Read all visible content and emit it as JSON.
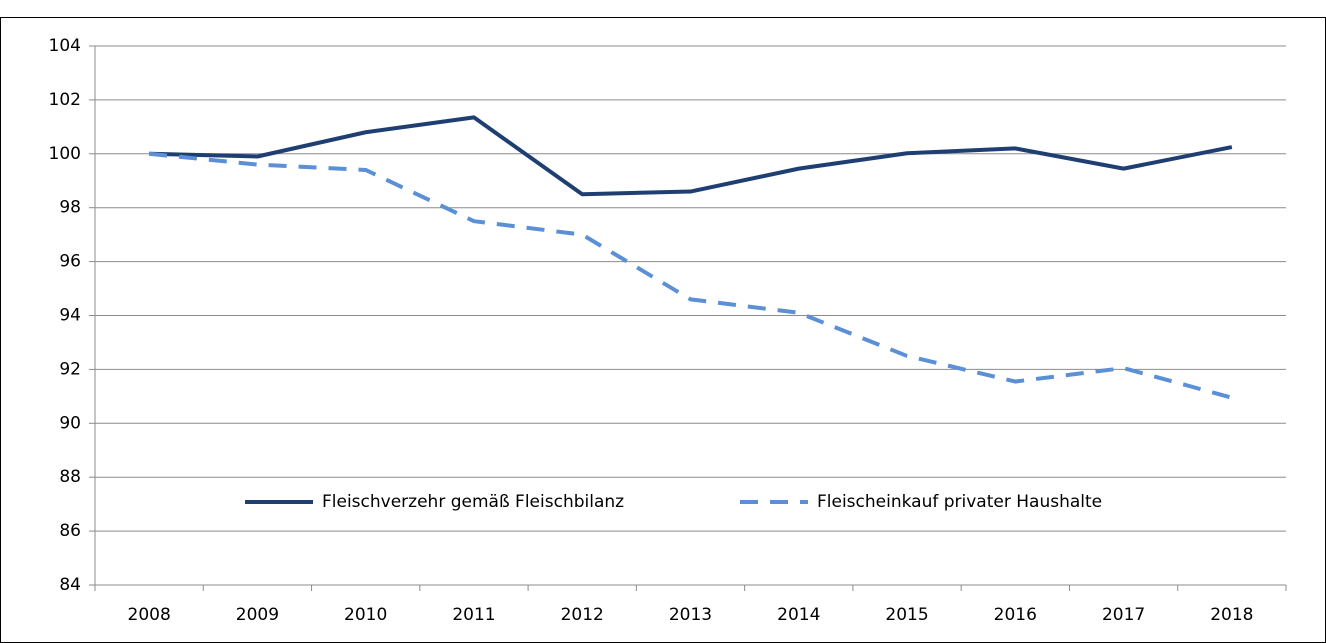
{
  "chart_data": {
    "type": "line",
    "categories": [
      "2008",
      "2009",
      "2010",
      "2011",
      "2012",
      "2013",
      "2014",
      "2015",
      "2016",
      "2017",
      "2018"
    ],
    "series": [
      {
        "name": "Fleischverzehr gemäß Fleischbilanz",
        "color": "#1f3f73",
        "dash": false,
        "values": [
          100,
          99.9,
          100.8,
          101.35,
          98.5,
          98.6,
          99.45,
          100.02,
          100.2,
          99.45,
          100.25
        ]
      },
      {
        "name": "Fleischeinkauf privater Haushalte",
        "color": "#5b8fd6",
        "dash": true,
        "values": [
          100,
          99.6,
          99.4,
          97.5,
          97.0,
          94.6,
          94.1,
          92.5,
          91.55,
          92.05,
          90.95
        ]
      }
    ],
    "ylim": [
      84,
      104
    ],
    "yticks": [
      84,
      86,
      88,
      90,
      92,
      94,
      96,
      98,
      100,
      102,
      104
    ],
    "grid": true,
    "legend": "bottom"
  }
}
